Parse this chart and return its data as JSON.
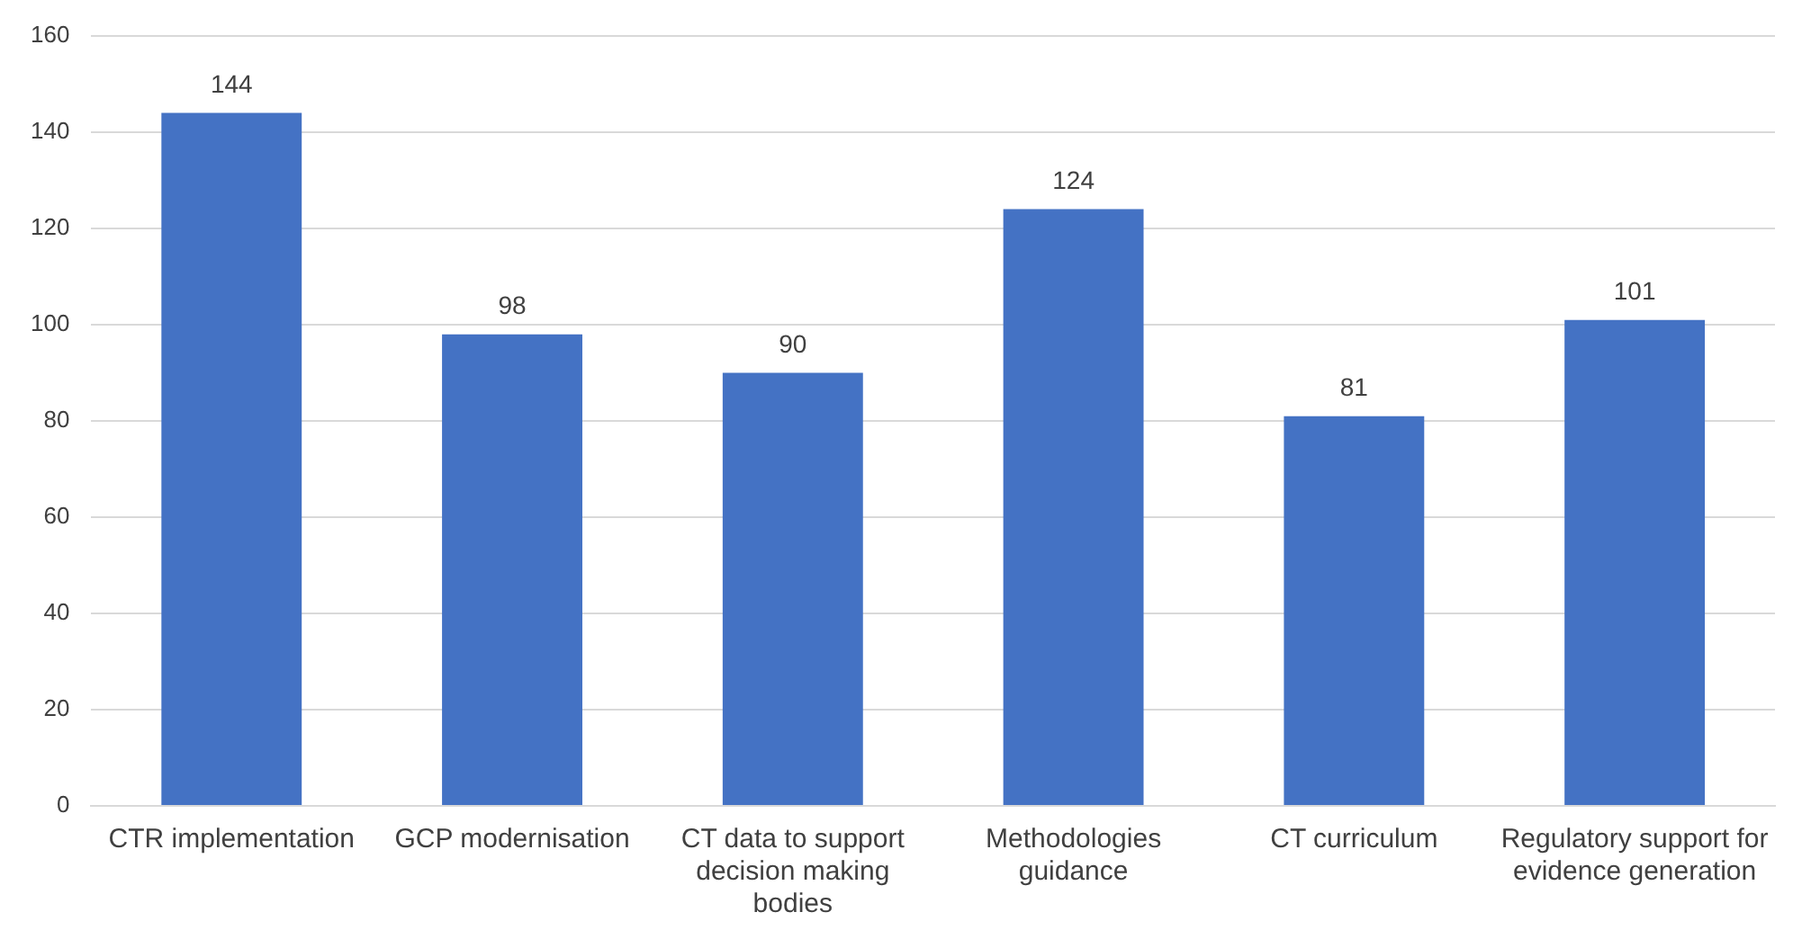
{
  "chart_data": {
    "type": "bar",
    "categories": [
      "CTR implementation",
      "GCP modernisation",
      "CT data to support decision making bodies",
      "Methodologies guidance",
      "CT curriculum",
      "Regulatory support for evidence generation"
    ],
    "values": [
      144,
      98,
      90,
      124,
      81,
      101
    ],
    "color": "#4472c4",
    "ylim": [
      0,
      160
    ],
    "yticks": [
      0,
      20,
      40,
      60,
      80,
      100,
      120,
      140,
      160
    ],
    "grid": "y",
    "data_labels": true,
    "legend": false
  }
}
